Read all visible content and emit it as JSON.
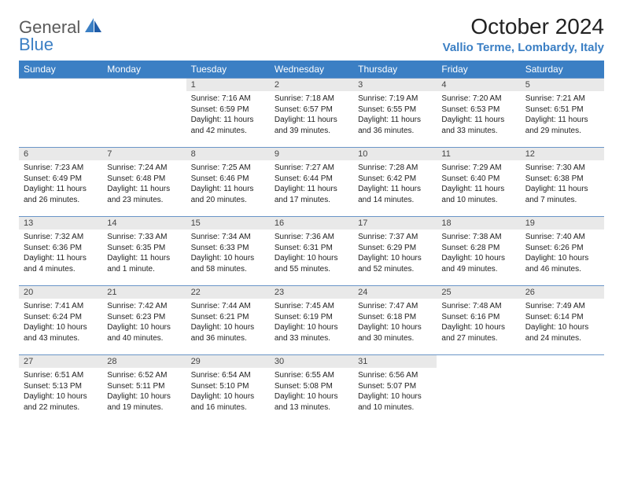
{
  "brand": {
    "general": "General",
    "blue": "Blue"
  },
  "title": "October 2024",
  "location": "Vallio Terme, Lombardy, Italy",
  "colors": {
    "header_bg": "#3b7fc4",
    "header_fg": "#ffffff",
    "daynum_bg": "#e9e9e9",
    "row_border": "#6a95c7",
    "logo_gray": "#5a5a5a",
    "logo_blue": "#3b7fc4"
  },
  "weekdays": [
    "Sunday",
    "Monday",
    "Tuesday",
    "Wednesday",
    "Thursday",
    "Friday",
    "Saturday"
  ],
  "weeks": [
    [
      {
        "empty": true
      },
      {
        "empty": true
      },
      {
        "n": "1",
        "sr": "7:16 AM",
        "ss": "6:59 PM",
        "dl": "11 hours and 42 minutes."
      },
      {
        "n": "2",
        "sr": "7:18 AM",
        "ss": "6:57 PM",
        "dl": "11 hours and 39 minutes."
      },
      {
        "n": "3",
        "sr": "7:19 AM",
        "ss": "6:55 PM",
        "dl": "11 hours and 36 minutes."
      },
      {
        "n": "4",
        "sr": "7:20 AM",
        "ss": "6:53 PM",
        "dl": "11 hours and 33 minutes."
      },
      {
        "n": "5",
        "sr": "7:21 AM",
        "ss": "6:51 PM",
        "dl": "11 hours and 29 minutes."
      }
    ],
    [
      {
        "n": "6",
        "sr": "7:23 AM",
        "ss": "6:49 PM",
        "dl": "11 hours and 26 minutes."
      },
      {
        "n": "7",
        "sr": "7:24 AM",
        "ss": "6:48 PM",
        "dl": "11 hours and 23 minutes."
      },
      {
        "n": "8",
        "sr": "7:25 AM",
        "ss": "6:46 PM",
        "dl": "11 hours and 20 minutes."
      },
      {
        "n": "9",
        "sr": "7:27 AM",
        "ss": "6:44 PM",
        "dl": "11 hours and 17 minutes."
      },
      {
        "n": "10",
        "sr": "7:28 AM",
        "ss": "6:42 PM",
        "dl": "11 hours and 14 minutes."
      },
      {
        "n": "11",
        "sr": "7:29 AM",
        "ss": "6:40 PM",
        "dl": "11 hours and 10 minutes."
      },
      {
        "n": "12",
        "sr": "7:30 AM",
        "ss": "6:38 PM",
        "dl": "11 hours and 7 minutes."
      }
    ],
    [
      {
        "n": "13",
        "sr": "7:32 AM",
        "ss": "6:36 PM",
        "dl": "11 hours and 4 minutes."
      },
      {
        "n": "14",
        "sr": "7:33 AM",
        "ss": "6:35 PM",
        "dl": "11 hours and 1 minute."
      },
      {
        "n": "15",
        "sr": "7:34 AM",
        "ss": "6:33 PM",
        "dl": "10 hours and 58 minutes."
      },
      {
        "n": "16",
        "sr": "7:36 AM",
        "ss": "6:31 PM",
        "dl": "10 hours and 55 minutes."
      },
      {
        "n": "17",
        "sr": "7:37 AM",
        "ss": "6:29 PM",
        "dl": "10 hours and 52 minutes."
      },
      {
        "n": "18",
        "sr": "7:38 AM",
        "ss": "6:28 PM",
        "dl": "10 hours and 49 minutes."
      },
      {
        "n": "19",
        "sr": "7:40 AM",
        "ss": "6:26 PM",
        "dl": "10 hours and 46 minutes."
      }
    ],
    [
      {
        "n": "20",
        "sr": "7:41 AM",
        "ss": "6:24 PM",
        "dl": "10 hours and 43 minutes."
      },
      {
        "n": "21",
        "sr": "7:42 AM",
        "ss": "6:23 PM",
        "dl": "10 hours and 40 minutes."
      },
      {
        "n": "22",
        "sr": "7:44 AM",
        "ss": "6:21 PM",
        "dl": "10 hours and 36 minutes."
      },
      {
        "n": "23",
        "sr": "7:45 AM",
        "ss": "6:19 PM",
        "dl": "10 hours and 33 minutes."
      },
      {
        "n": "24",
        "sr": "7:47 AM",
        "ss": "6:18 PM",
        "dl": "10 hours and 30 minutes."
      },
      {
        "n": "25",
        "sr": "7:48 AM",
        "ss": "6:16 PM",
        "dl": "10 hours and 27 minutes."
      },
      {
        "n": "26",
        "sr": "7:49 AM",
        "ss": "6:14 PM",
        "dl": "10 hours and 24 minutes."
      }
    ],
    [
      {
        "n": "27",
        "sr": "6:51 AM",
        "ss": "5:13 PM",
        "dl": "10 hours and 22 minutes."
      },
      {
        "n": "28",
        "sr": "6:52 AM",
        "ss": "5:11 PM",
        "dl": "10 hours and 19 minutes."
      },
      {
        "n": "29",
        "sr": "6:54 AM",
        "ss": "5:10 PM",
        "dl": "10 hours and 16 minutes."
      },
      {
        "n": "30",
        "sr": "6:55 AM",
        "ss": "5:08 PM",
        "dl": "10 hours and 13 minutes."
      },
      {
        "n": "31",
        "sr": "6:56 AM",
        "ss": "5:07 PM",
        "dl": "10 hours and 10 minutes."
      },
      {
        "empty": true
      },
      {
        "empty": true
      }
    ]
  ],
  "labels": {
    "sunrise": "Sunrise:",
    "sunset": "Sunset:",
    "daylight": "Daylight:"
  }
}
